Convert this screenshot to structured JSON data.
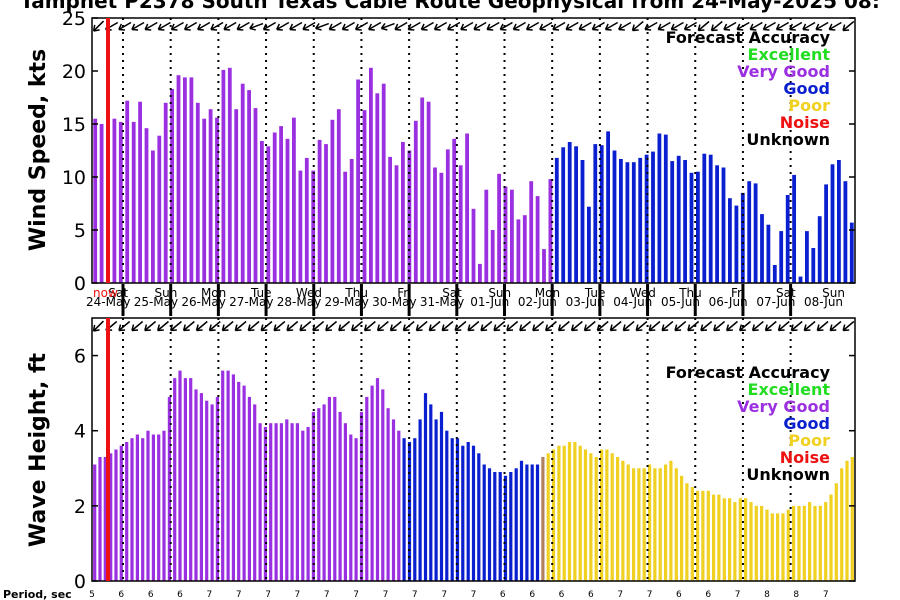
{
  "title": "Tampnet P2378 South Texas Cable Route Geophysical from 24-May-2025 08:",
  "colors": {
    "Excellent": "#22dd22",
    "Very Good": "#9b30e0",
    "Good": "#0a1fcf",
    "Poor": "#f0d020",
    "Noise": "#ee1111",
    "Unknown": "#000000",
    "transition": "#b08060"
  },
  "legend": {
    "title": "Forecast Accuracy",
    "items": [
      "Excellent",
      "Very Good",
      "Good",
      "Poor",
      "Noise",
      "Unknown"
    ]
  },
  "days": [
    {
      "dow": "Sat",
      "date": "24-May"
    },
    {
      "dow": "Sun",
      "date": "25-May"
    },
    {
      "dow": "Mon",
      "date": "26-May"
    },
    {
      "dow": "Tue",
      "date": "27-May"
    },
    {
      "dow": "Wed",
      "date": "28-May"
    },
    {
      "dow": "Thu",
      "date": "29-May"
    },
    {
      "dow": "Fri",
      "date": "30-May"
    },
    {
      "dow": "Sat",
      "date": "31-May"
    },
    {
      "dow": "Sun",
      "date": "01-Jun"
    },
    {
      "dow": "Mon",
      "date": "02-Jun"
    },
    {
      "dow": "Tue",
      "date": "03-Jun"
    },
    {
      "dow": "Wed",
      "date": "04-Jun"
    },
    {
      "dow": "Thu",
      "date": "05-Jun"
    },
    {
      "dow": "Fri",
      "date": "06-Jun"
    },
    {
      "dow": "Sat",
      "date": "07-Jun"
    },
    {
      "dow": "Sun",
      "date": "08-Jun"
    }
  ],
  "now_label": "now",
  "period": {
    "label": "Period, sec",
    "values": [
      "5",
      "6",
      "6",
      "6",
      "7",
      "7",
      "7",
      "7",
      "7",
      "7",
      "7",
      "7",
      "7",
      "7",
      "6",
      "6",
      "6",
      "6",
      "7",
      "7",
      "6",
      "6",
      "7",
      "8",
      "8",
      "7"
    ]
  },
  "chart_data": [
    {
      "type": "bar",
      "ylabel": "Wind Speed, kts",
      "ylim": [
        0,
        25
      ],
      "yticks": [
        0,
        5,
        10,
        15,
        20,
        25
      ],
      "x_start": "24-May 00:00",
      "x_end": "08-Jun 24:00",
      "bar_interval_hours": 3,
      "values": [
        15.5,
        15.0,
        14.5,
        15.5,
        15.2,
        17.2,
        15.2,
        17.1,
        14.6,
        12.5,
        13.9,
        17.0,
        18.3,
        19.6,
        19.4,
        19.4,
        17.0,
        15.5,
        16.4,
        15.6,
        20.1,
        20.3,
        16.4,
        18.8,
        18.2,
        16.5,
        13.4,
        12.9,
        14.2,
        14.8,
        13.6,
        15.6,
        10.6,
        11.8,
        10.6,
        13.5,
        13.1,
        15.4,
        16.4,
        10.5,
        11.7,
        19.2,
        16.3,
        20.3,
        17.9,
        18.8,
        11.9,
        11.1,
        13.3,
        12.5,
        15.3,
        17.5,
        17.1,
        10.9,
        10.4,
        12.6,
        13.6,
        11.1,
        14.1,
        7.0,
        1.8,
        8.8,
        5.0,
        10.3,
        9.1,
        8.8,
        6.0,
        6.4,
        9.6,
        8.2,
        3.2,
        9.8
      ],
      "colors": [
        "Very Good"
      ],
      "values2": [
        11.8,
        12.8,
        13.3,
        12.9,
        11.6,
        7.2,
        13.1,
        13.0,
        14.3,
        12.5,
        11.7,
        11.4,
        11.4,
        11.8,
        12.1,
        12.4,
        14.1,
        14.0,
        11.5,
        12.0,
        11.6,
        10.4,
        10.5,
        12.2,
        12.1,
        11.1,
        10.9,
        8.0,
        7.3,
        8.5,
        9.6,
        9.4,
        6.5,
        5.5,
        1.7,
        4.9,
        8.3,
        10.2,
        0.6,
        4.9,
        3.3,
        6.3,
        9.3,
        11.2,
        11.6,
        9.6,
        5.7
      ],
      "colors2": [
        "Good"
      ],
      "arrows_deg": [
        135,
        150,
        150,
        150,
        150,
        150,
        150,
        150,
        150,
        150,
        150,
        150,
        160,
        150,
        150,
        150,
        150,
        160,
        150,
        150,
        150,
        150,
        160,
        150,
        150,
        150,
        150,
        150,
        150,
        150,
        150,
        150,
        150,
        150,
        150,
        150,
        150,
        150,
        150,
        150,
        150,
        140,
        150,
        150,
        150,
        150,
        140,
        140,
        150,
        150,
        150,
        150,
        150,
        150,
        150,
        150,
        150,
        140
      ]
    },
    {
      "type": "bar",
      "ylabel": "Wave Height, ft",
      "ylim": [
        0,
        7
      ],
      "yticks": [
        0,
        2,
        4,
        6
      ],
      "x_start": "24-May 00:00",
      "x_end": "08-Jun 24:00",
      "bar_interval_hours": 3,
      "values": [
        3.1,
        3.3,
        3.3,
        3.4,
        3.5,
        3.6,
        3.7,
        3.8,
        3.9,
        3.8,
        4.0,
        3.9,
        3.9,
        4.0,
        4.9,
        5.4,
        5.6,
        5.4,
        5.4,
        5.1,
        5.0,
        4.8,
        4.7,
        4.9,
        5.6,
        5.6,
        5.5,
        5.3,
        5.2,
        4.9,
        4.7,
        4.2,
        4.1,
        4.2,
        4.2,
        4.2,
        4.3,
        4.2,
        4.2,
        4.0,
        4.1,
        4.5,
        4.6,
        4.7,
        4.9,
        4.9,
        4.5,
        4.2,
        3.9,
        3.8,
        4.5,
        4.9,
        5.2,
        5.4,
        5.1,
        4.6,
        4.3,
        4.0
      ],
      "colors": [
        "Very Good"
      ],
      "values2": [
        3.8,
        3.7,
        3.8,
        4.3,
        5.0,
        4.7,
        4.3,
        4.5,
        4.0,
        3.8,
        3.8,
        3.6,
        3.7,
        3.6,
        3.4,
        3.1,
        3.0,
        2.9,
        2.9,
        2.8,
        2.9,
        3.0,
        3.2,
        3.1,
        3.1,
        3.1
      ],
      "colors2": [
        "Good"
      ],
      "values3": [
        3.3,
        3.4,
        3.5,
        3.6,
        3.6,
        3.7,
        3.7,
        3.6,
        3.5,
        3.4,
        3.3,
        3.5,
        3.5,
        3.4,
        3.3,
        3.2,
        3.1,
        3.0,
        3.0,
        3.0,
        3.1,
        3.0,
        3.0,
        3.1,
        3.2,
        3.0,
        2.8,
        2.6,
        2.5,
        2.4,
        2.4,
        2.4,
        2.3,
        2.3,
        2.2,
        2.2,
        2.1,
        2.2,
        2.2,
        2.1,
        2.0,
        2.0,
        1.9,
        1.8,
        1.8,
        1.8,
        1.9,
        2.0,
        2.0,
        2.0,
        2.1,
        2.0,
        2.0,
        2.1,
        2.3,
        2.6,
        3.0,
        3.2,
        3.3
      ],
      "colors3": [
        "Poor"
      ],
      "arrows_deg": [
        135,
        140,
        140,
        140,
        140,
        140,
        140,
        140,
        140,
        140,
        140,
        140,
        140,
        140,
        140,
        140,
        140,
        140,
        140,
        140,
        140,
        140,
        140,
        140,
        140,
        140,
        140,
        140,
        140,
        140,
        140,
        140,
        140,
        140,
        140,
        140,
        140,
        140,
        140,
        140,
        140,
        140,
        140,
        140,
        140,
        140,
        140,
        140,
        140,
        140,
        140,
        140,
        140,
        140,
        140,
        140,
        140,
        140,
        140
      ]
    }
  ]
}
